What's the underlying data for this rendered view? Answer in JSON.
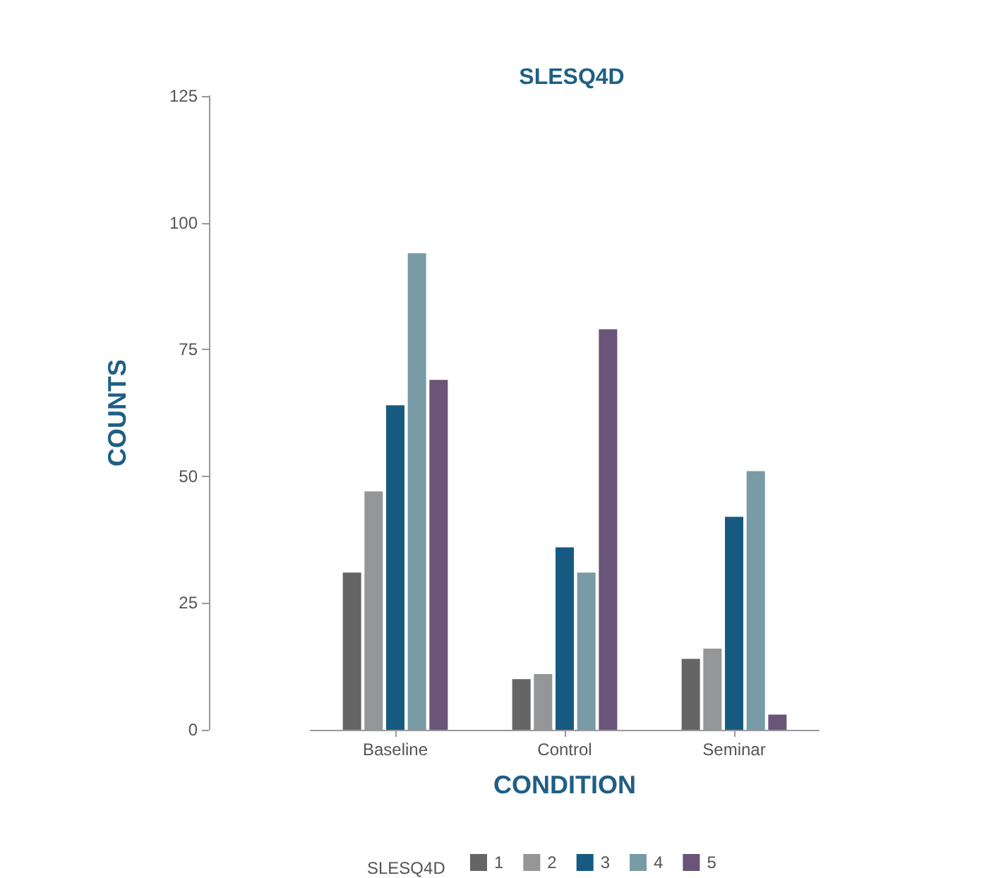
{
  "chart_data": {
    "type": "bar",
    "title": "SLESQ4D",
    "xlabel": "CONDITION",
    "ylabel": "COUNTS",
    "legend_title": "SLESQ4D",
    "legend": "bottom",
    "grid": false,
    "categories": [
      "Baseline",
      "Control",
      "Seminar"
    ],
    "ylim": [
      0,
      125
    ],
    "yticks": [
      0,
      25,
      50,
      75,
      100,
      125
    ],
    "series": [
      {
        "name": "1",
        "color": "#656566",
        "values": [
          31,
          10,
          14
        ]
      },
      {
        "name": "2",
        "color": "#959698",
        "values": [
          47,
          11,
          16
        ]
      },
      {
        "name": "3",
        "color": "#165a82",
        "values": [
          64,
          36,
          42
        ]
      },
      {
        "name": "4",
        "color": "#789ba6",
        "values": [
          94,
          31,
          51
        ]
      },
      {
        "name": "5",
        "color": "#6a5478",
        "values": [
          69,
          79,
          3
        ]
      }
    ]
  }
}
